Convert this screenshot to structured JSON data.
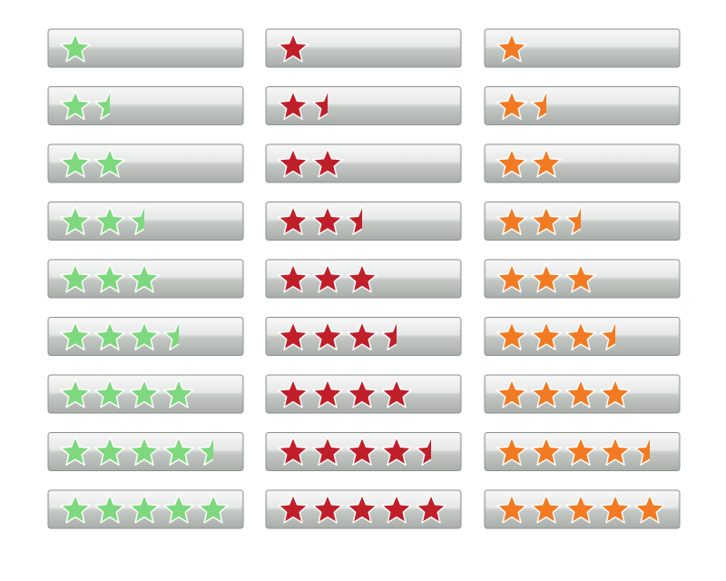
{
  "columns": [
    {
      "color": "#7ed87e"
    },
    {
      "color": "#c01f2a"
    },
    {
      "color": "#f27a22"
    }
  ],
  "ratings": [
    1,
    1.5,
    2,
    2.5,
    3,
    3.5,
    4,
    4.5,
    5
  ]
}
